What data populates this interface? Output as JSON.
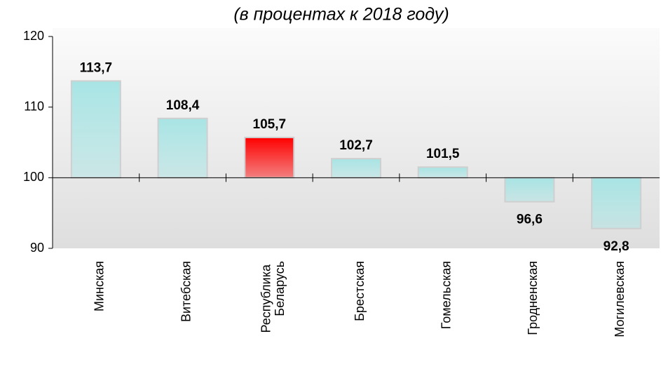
{
  "chart_data": {
    "type": "bar",
    "subtitle": "(в процентах к 2018 году)",
    "categories": [
      "Минская",
      "Витебская",
      "Республика Беларусь",
      "Брестская",
      "Гомельская",
      "Гродненская",
      "Могилевская"
    ],
    "values": [
      113.7,
      108.4,
      105.7,
      102.7,
      101.5,
      96.6,
      92.8
    ],
    "value_labels": [
      "113,7",
      "108,4",
      "105,7",
      "102,7",
      "101,5",
      "96,6",
      "92,8"
    ],
    "colors": [
      "#a8e4e4",
      "#a8e4e4",
      "#ff0000",
      "#a8e4e4",
      "#a8e4e4",
      "#a8e4e4",
      "#a8e4e4"
    ],
    "baseline": 100,
    "ylim": [
      90,
      120
    ],
    "yticks": [
      90,
      100,
      110,
      120
    ]
  }
}
